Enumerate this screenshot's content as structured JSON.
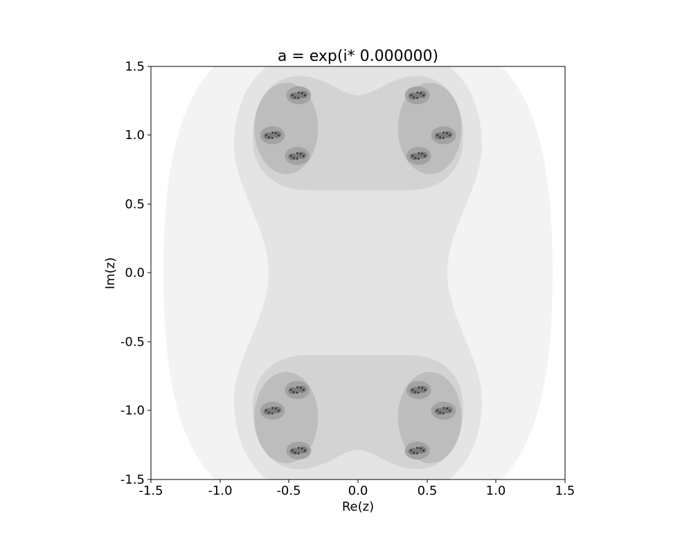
{
  "chart_data": {
    "type": "heatmap",
    "title": "a = exp(i* 0.000000)",
    "xlabel": "Re(z)",
    "ylabel": "Im(z)",
    "xlim": [
      -1.5,
      1.5
    ],
    "ylim": [
      -1.5,
      1.5
    ],
    "x_ticks": [
      "-1.5",
      "-1.0",
      "-0.5",
      "0.0",
      "0.5",
      "1.0",
      "1.5"
    ],
    "y_ticks": [
      "1.5",
      "1.0",
      "0.5",
      "0.0",
      "-0.5",
      "-1.0",
      "-1.5"
    ],
    "grid": false,
    "colormap": "greys",
    "level_colors": [
      "#ffffff",
      "#f3f3f3",
      "#e4e4e4",
      "#d3d3d3",
      "#bdbdbd",
      "#a3a3a3",
      "#7a7a7a",
      "#333333"
    ],
    "cluster_centers": [
      [
        -0.5,
        1.05
      ],
      [
        0.5,
        1.05
      ],
      [
        -0.5,
        -1.05
      ],
      [
        0.5,
        -1.05
      ]
    ],
    "subcluster_centers": [
      [
        -0.43,
        1.29
      ],
      [
        -0.62,
        1.0
      ],
      [
        -0.44,
        0.85
      ],
      [
        0.43,
        1.29
      ],
      [
        0.62,
        1.0
      ],
      [
        0.44,
        0.85
      ],
      [
        -0.43,
        -1.29
      ],
      [
        -0.62,
        -1.0
      ],
      [
        -0.44,
        -0.85
      ],
      [
        0.43,
        -1.29
      ],
      [
        0.62,
        -1.0
      ],
      [
        0.44,
        -0.85
      ]
    ]
  }
}
